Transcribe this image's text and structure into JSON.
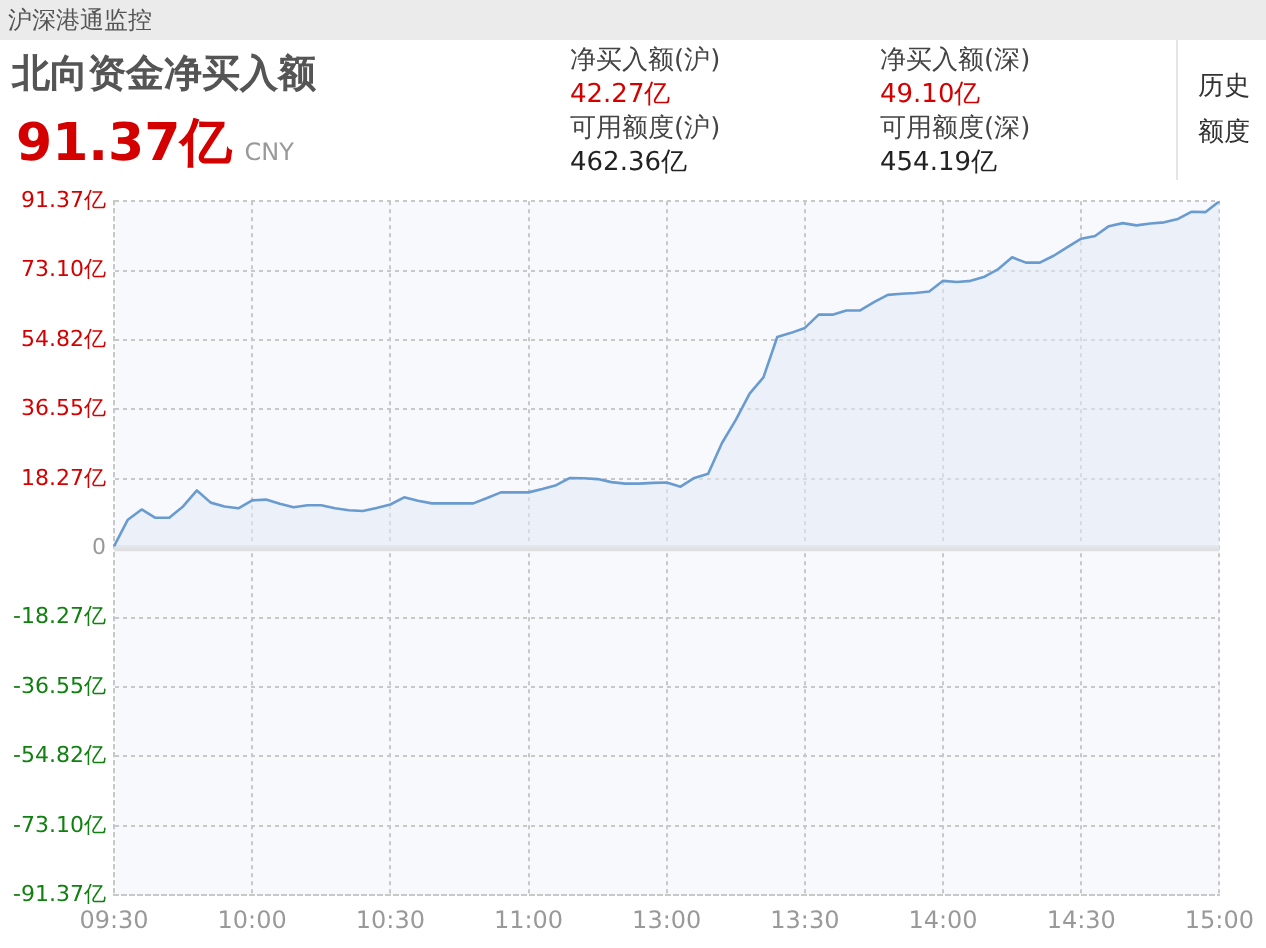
{
  "chart_data": {
    "type": "area",
    "title": "北向资金净买入额",
    "annotations": [
      "沪深港通监控",
      "91.37亿",
      "CNY",
      "净买入额(沪)",
      "42.27亿",
      "可用额度(沪)",
      "462.36亿",
      "净买入额(深)",
      "49.10亿",
      "可用额度(深)",
      "454.19亿",
      "历史额度"
    ],
    "categories": [
      "09:30",
      null,
      null,
      null,
      null,
      null,
      null,
      null,
      null,
      null,
      "10:00",
      null,
      null,
      null,
      null,
      null,
      null,
      null,
      null,
      null,
      "10:30",
      null,
      null,
      null,
      null,
      null,
      null,
      null,
      null,
      null,
      "11:00",
      null,
      null,
      null,
      null,
      null,
      null,
      null,
      null,
      null,
      "13:00",
      null,
      null,
      null,
      null,
      null,
      null,
      null,
      null,
      null,
      "13:30",
      null,
      null,
      null,
      null,
      null,
      null,
      null,
      null,
      null,
      "14:00",
      null,
      null,
      null,
      null,
      null,
      null,
      null,
      null,
      null,
      "14:30",
      null,
      null,
      null,
      null,
      null,
      null,
      null,
      null,
      null,
      "15:00"
    ],
    "series": [
      {
        "color": "#6a9bd0",
        "values": [
          0.5,
          7.5,
          10.2,
          8,
          8,
          11,
          15.2,
          12,
          11,
          10.5,
          12.6,
          12.8,
          11.7,
          10.8,
          11.3,
          11.3,
          10.5,
          10,
          9.8,
          10.6,
          11.5,
          13.4,
          12.5,
          11.8,
          11.8,
          11.8,
          11.8,
          13.2,
          14.7,
          14.7,
          14.7,
          15.6,
          16.6,
          18.5,
          18.4,
          18.2,
          17.4,
          17,
          17,
          17.2,
          17.3,
          16.2,
          18.5,
          19.6,
          27.7,
          33.8,
          40.7,
          45,
          55.6,
          56.7,
          58,
          61.5,
          61.5,
          62.6,
          62.6,
          64.8,
          66.7,
          67,
          67.2,
          67.6,
          70.4,
          70.1,
          70.4,
          71.5,
          73.5,
          76.6,
          75.2,
          75.2,
          77,
          79.3,
          81.5,
          82.2,
          84.8,
          85.6,
          85,
          85.5,
          85.8,
          86.7,
          88.6,
          88.5,
          91.37
        ]
      }
    ],
    "ylim": [
      -91.37,
      91.37
    ],
    "yticks": [
      {
        "value": -91.37,
        "label": "-91.37亿"
      },
      {
        "value": -73.1,
        "label": "-73.10亿"
      },
      {
        "value": -54.82,
        "label": "-54.82亿"
      },
      {
        "value": -36.55,
        "label": "-36.55亿"
      },
      {
        "value": -18.27,
        "label": "-18.27亿"
      },
      0,
      {
        "value": 18.27,
        "label": "18.27亿"
      },
      {
        "value": 36.55,
        "label": "36.55亿"
      },
      {
        "value": 54.82,
        "label": "54.82亿"
      },
      {
        "value": 73.1,
        "label": "73.10亿"
      },
      {
        "value": 91.37,
        "label": "91.37亿"
      }
    ],
    "ref_lines": [
      {
        "axis": "y",
        "value": 0,
        "color": "#e0e0e0"
      }
    ],
    "grid": true,
    "marker": "none",
    "line_style": "solid",
    "legend": false
  }
}
